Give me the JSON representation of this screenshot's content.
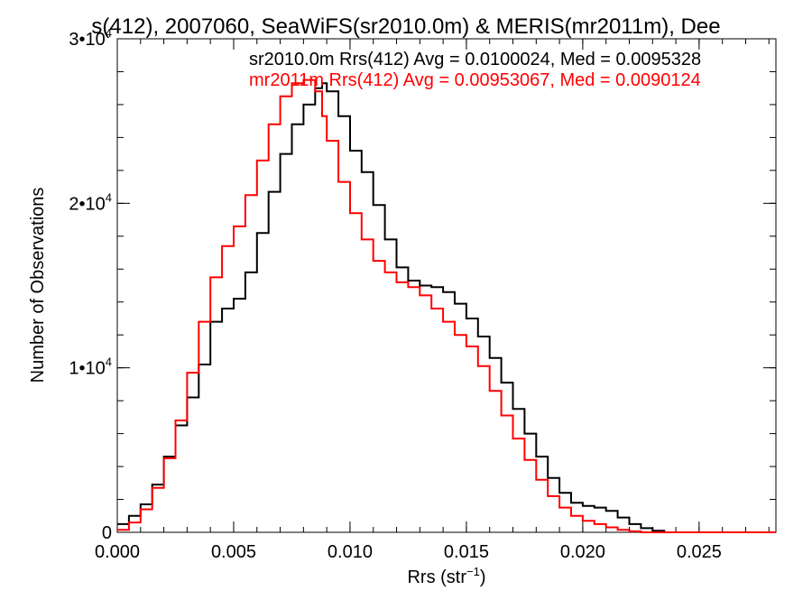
{
  "chart_data": {
    "type": "line",
    "title": "s(412), 2007060, SeaWiFS(sr2010.0m) & MERIS(mr2011m), Dee",
    "xlabel": "Rrs (str",
    "xlabel_sup": "−1",
    "xlabel_tail": ")",
    "ylabel": "Number of Observations",
    "xlim": [
      0.0,
      0.0283
    ],
    "ylim": [
      0,
      30000
    ],
    "x_ticks": [
      {
        "value": 0.0,
        "label": "0.000"
      },
      {
        "value": 0.005,
        "label": "0.005"
      },
      {
        "value": 0.01,
        "label": "0.010"
      },
      {
        "value": 0.015,
        "label": "0.015"
      },
      {
        "value": 0.02,
        "label": "0.020"
      },
      {
        "value": 0.025,
        "label": "0.025"
      }
    ],
    "y_ticks": [
      {
        "value": 0,
        "label": "0",
        "sup": ""
      },
      {
        "value": 10000,
        "label": "1•10",
        "sup": "4"
      },
      {
        "value": 20000,
        "label": "2•10",
        "sup": "4"
      },
      {
        "value": 30000,
        "label": "3•10",
        "sup": "4"
      }
    ],
    "step": "histogram",
    "series": [
      {
        "name": "sr2010.0m",
        "label": "sr2010.0m Rrs(412) Avg = 0.0100024, Med = 0.0095328",
        "color": "#000000",
        "x": [
          0.0,
          0.0005,
          0.001,
          0.0015,
          0.002,
          0.0025,
          0.003,
          0.0035,
          0.004,
          0.0045,
          0.005,
          0.0055,
          0.006,
          0.0065,
          0.007,
          0.0075,
          0.008,
          0.0085,
          0.0088,
          0.009,
          0.0095,
          0.01,
          0.0105,
          0.011,
          0.0115,
          0.012,
          0.0125,
          0.013,
          0.0135,
          0.014,
          0.0145,
          0.015,
          0.0155,
          0.016,
          0.0165,
          0.017,
          0.0175,
          0.018,
          0.0185,
          0.019,
          0.0195,
          0.02,
          0.0205,
          0.021,
          0.0215,
          0.022,
          0.0225,
          0.023,
          0.0235,
          0.024,
          0.025,
          0.0283
        ],
        "y": [
          500,
          1000,
          1700,
          2900,
          4600,
          6500,
          8200,
          10200,
          12800,
          13600,
          14200,
          15800,
          18200,
          20700,
          23000,
          24800,
          26000,
          27000,
          27300,
          26800,
          25300,
          23200,
          21900,
          19900,
          17800,
          16100,
          15300,
          15000,
          14900,
          14600,
          13900,
          13000,
          11900,
          10600,
          9100,
          7500,
          6000,
          4600,
          3300,
          2400,
          1800,
          1600,
          1500,
          1300,
          900,
          500,
          250,
          100,
          0,
          0,
          0,
          0
        ]
      },
      {
        "name": "mr2011m",
        "label": "mr2011m Rrs(412) Avg = 0.00953067, Med = 0.0090124",
        "color": "#ff0000",
        "x": [
          0.0,
          0.0005,
          0.001,
          0.0015,
          0.002,
          0.0025,
          0.003,
          0.0035,
          0.004,
          0.0045,
          0.005,
          0.0055,
          0.006,
          0.0065,
          0.007,
          0.0075,
          0.008,
          0.0085,
          0.0088,
          0.009,
          0.0095,
          0.01,
          0.0105,
          0.011,
          0.0115,
          0.012,
          0.0125,
          0.013,
          0.0135,
          0.014,
          0.0145,
          0.015,
          0.0155,
          0.016,
          0.0165,
          0.017,
          0.0175,
          0.018,
          0.0185,
          0.019,
          0.0195,
          0.02,
          0.0205,
          0.021,
          0.0215,
          0.022,
          0.0225,
          0.023,
          0.0235,
          0.024,
          0.025,
          0.0283
        ],
        "y": [
          150,
          600,
          1400,
          2700,
          4500,
          6800,
          9700,
          12800,
          15500,
          17400,
          18600,
          20500,
          22600,
          24800,
          26500,
          27300,
          27500,
          26800,
          25300,
          23800,
          21300,
          19400,
          17800,
          16500,
          15800,
          15200,
          14900,
          14400,
          13600,
          12800,
          12000,
          11300,
          10100,
          8600,
          7100,
          5700,
          4400,
          3200,
          2200,
          1500,
          1000,
          700,
          500,
          300,
          150,
          60,
          0,
          0,
          0,
          0,
          0,
          0
        ]
      }
    ]
  }
}
